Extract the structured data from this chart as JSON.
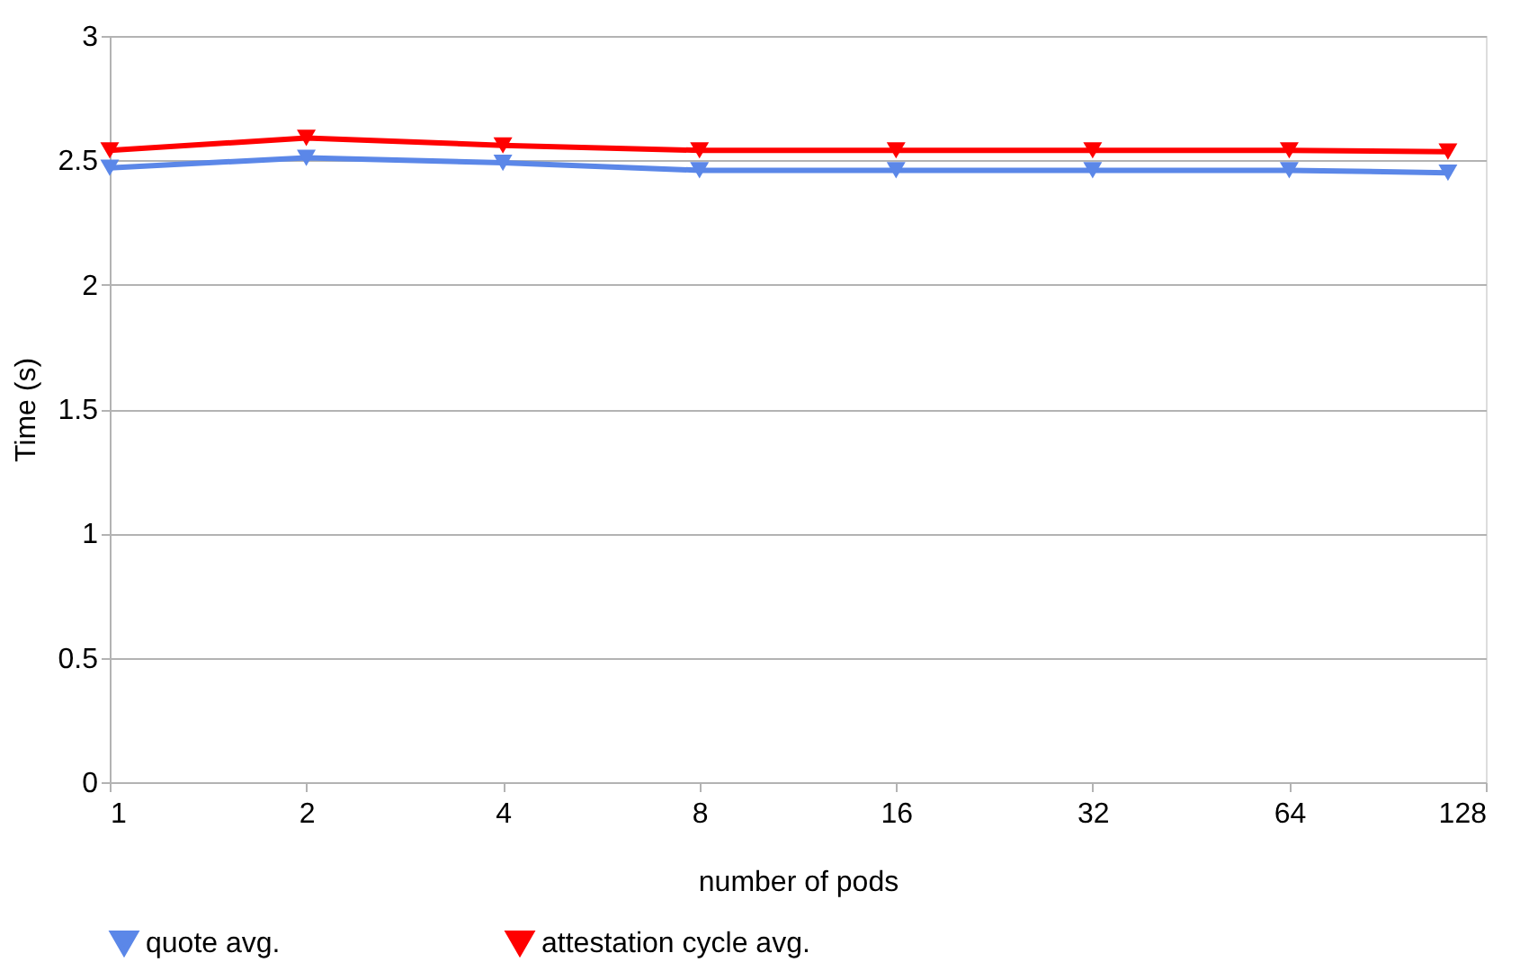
{
  "chart_data": {
    "type": "line",
    "xlabel": "number of pods",
    "ylabel": "Time (s)",
    "log": "x",
    "xlim": [
      1,
      128
    ],
    "xticks": [
      1,
      2,
      4,
      8,
      16,
      32,
      64,
      128
    ],
    "ylim": [
      0,
      3
    ],
    "yticks": [
      0,
      0.5,
      1,
      1.5,
      2,
      2.5,
      3
    ],
    "grid": "y",
    "legend": "bottom",
    "marker": "triangle",
    "line_style": "solid",
    "x": [
      1,
      2,
      4,
      8,
      16,
      32,
      64,
      112
    ],
    "series": [
      {
        "name": "quote avg.",
        "color": "#5b87e8",
        "values": [
          2.47,
          2.51,
          2.49,
          2.46,
          2.46,
          2.46,
          2.46,
          2.45
        ]
      },
      {
        "name": "attestation cycle avg.",
        "color": "#ff0000",
        "values": [
          2.54,
          2.59,
          2.56,
          2.54,
          2.54,
          2.54,
          2.54,
          2.535
        ]
      }
    ]
  }
}
